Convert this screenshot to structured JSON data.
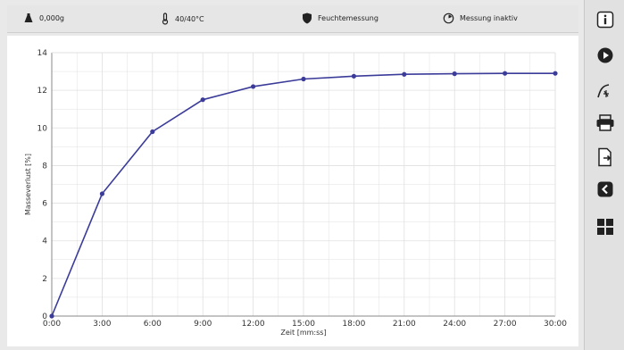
{
  "status": {
    "weight": "0,000g",
    "temperature": "40/40°C",
    "mode": "Feuchtemessung",
    "measurement": "Messung inaktiv"
  },
  "sidebar": {
    "items": [
      {
        "icon": "info-icon"
      },
      {
        "icon": "play-icon"
      },
      {
        "icon": "curve-icon"
      },
      {
        "icon": "printer-icon"
      },
      {
        "icon": "export-icon"
      },
      {
        "icon": "back-icon"
      },
      {
        "icon": "grid-icon"
      }
    ]
  },
  "colors": {
    "line": "#3b3b9a",
    "grid": "#e0e0e0",
    "axis": "#888888"
  },
  "chart_data": {
    "type": "line",
    "xlabel": "Zeit [mm:ss]",
    "ylabel": "Masseverlust [%]",
    "x_ticks": [
      "0:00",
      "3:00",
      "6:00",
      "9:00",
      "12:00",
      "15:00",
      "18:00",
      "21:00",
      "24:00",
      "27:00",
      "30:00"
    ],
    "y_ticks": [
      "0",
      "2",
      "4",
      "6",
      "8",
      "10",
      "12",
      "14"
    ],
    "xlim": [
      0,
      30
    ],
    "ylim": [
      0,
      14
    ],
    "grid": true,
    "series": [
      {
        "x": [
          0,
          3,
          6,
          9,
          12,
          15,
          18,
          21,
          24,
          27,
          30
        ],
        "y": [
          0,
          6.5,
          9.8,
          11.5,
          12.2,
          12.6,
          12.75,
          12.85,
          12.88,
          12.9,
          12.9
        ]
      }
    ]
  }
}
